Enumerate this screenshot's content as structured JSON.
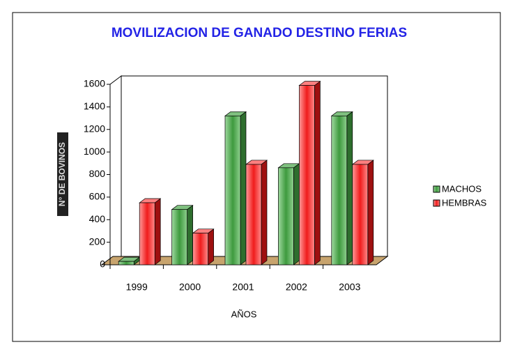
{
  "chart_data": {
    "type": "bar3d",
    "title": "MOVILIZACION DE GANADO DESTINO FERIAS",
    "y_label": "N° DE BOVINOS",
    "x_label": "AÑOS",
    "categories": [
      "1999",
      "2000",
      "2001",
      "2002",
      "2003"
    ],
    "series": [
      {
        "name": "MACHOS",
        "color": "#5cb85c",
        "values": [
          30,
          490,
          1320,
          860,
          1320
        ]
      },
      {
        "name": "HEMBRAS",
        "color": "#ff4d4d",
        "values": [
          550,
          280,
          890,
          1590,
          890
        ]
      }
    ],
    "ylim": [
      0,
      1600
    ],
    "yticks": [
      0,
      200,
      400,
      600,
      800,
      1000,
      1200,
      1400,
      1600
    ],
    "legend": "right"
  }
}
